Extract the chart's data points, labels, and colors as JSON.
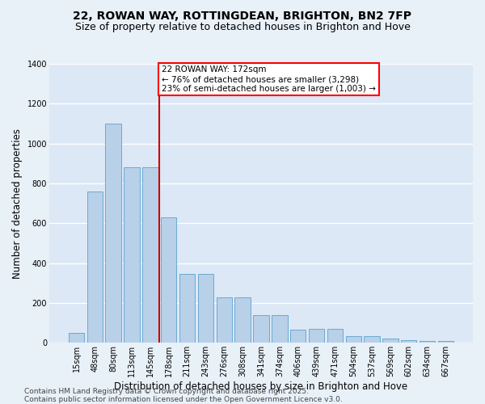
{
  "title_line1": "22, ROWAN WAY, ROTTINGDEAN, BRIGHTON, BN2 7FP",
  "title_line2": "Size of property relative to detached houses in Brighton and Hove",
  "xlabel": "Distribution of detached houses by size in Brighton and Hove",
  "ylabel": "Number of detached properties",
  "categories": [
    "15sqm",
    "48sqm",
    "80sqm",
    "113sqm",
    "145sqm",
    "178sqm",
    "211sqm",
    "243sqm",
    "276sqm",
    "308sqm",
    "341sqm",
    "374sqm",
    "406sqm",
    "439sqm",
    "471sqm",
    "504sqm",
    "537sqm",
    "569sqm",
    "602sqm",
    "634sqm",
    "667sqm"
  ],
  "values": [
    50,
    760,
    1100,
    880,
    880,
    630,
    345,
    345,
    230,
    230,
    140,
    140,
    65,
    70,
    70,
    32,
    32,
    22,
    15,
    10,
    10
  ],
  "bar_color": "#b8d0e8",
  "bar_edge_color": "#6aaad4",
  "background_color": "#dce8f5",
  "fig_background_color": "#e8f0f8",
  "grid_color": "#ffffff",
  "vline_color": "#cc0000",
  "annotation_text": "22 ROWAN WAY: 172sqm\n← 76% of detached houses are smaller (3,298)\n23% of semi-detached houses are larger (1,003) →",
  "ylim": [
    0,
    1400
  ],
  "yticks": [
    0,
    200,
    400,
    600,
    800,
    1000,
    1200,
    1400
  ],
  "footnote": "Contains HM Land Registry data © Crown copyright and database right 2025.\nContains public sector information licensed under the Open Government Licence v3.0.",
  "title_fontsize": 10,
  "subtitle_fontsize": 9,
  "axis_label_fontsize": 8.5,
  "tick_fontsize": 7,
  "footnote_fontsize": 6.5,
  "annotation_fontsize": 7.5
}
